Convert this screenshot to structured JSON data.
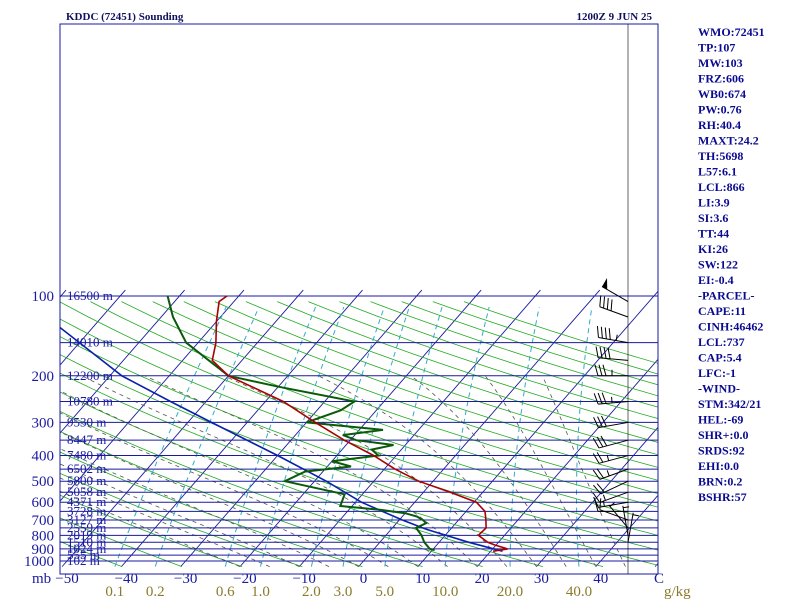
{
  "header": {
    "station": "KDDC (72451) Sounding",
    "time": "1200Z  9 JUN 25"
  },
  "indices": [
    "WMO:72451",
    "TP:107",
    "MW:103",
    "FRZ:606",
    "WB0:674",
    "PW:0.76",
    "RH:40.4",
    "MAXT:24.2",
    "TH:5698",
    "L57:6.1",
    "LCL:866",
    "LI:3.9",
    "SI:3.6",
    "TT:44",
    "KI:26",
    "SW:122",
    "EI:-0.4",
    "-PARCEL-",
    "CAPE:11",
    "CINH:46462",
    "LCL:737",
    "CAP:5.4",
    "LFC:-1",
    "-WIND-",
    "STM:342/21",
    "HEL:-69",
    "SHR+:0.0",
    "SRDS:92",
    "EHI:0.0",
    "BRN:0.2",
    "BSHR:57"
  ],
  "colors": {
    "isobar": "#1a1aa0",
    "isotherm": "#1a1aa0",
    "dry_adiabat": "#22aa22",
    "mixing_ratio": "#33aacc",
    "moist_adiabat": "#555555",
    "temperature": "#aa0000",
    "dewpoint": "#0a5a0a",
    "parcel": "#0a22aa",
    "wind": "#000000"
  },
  "chart_data": {
    "type": "skew-t log-p",
    "pressure_axis": {
      "unit": "mb",
      "ticks": [
        100,
        200,
        300,
        400,
        500,
        600,
        700,
        800,
        900,
        1000
      ],
      "range": [
        1050,
        100
      ],
      "scale": "log"
    },
    "temperature_axis": {
      "unit": "C",
      "ticks": [
        -50,
        -40,
        -30,
        -20,
        -10,
        0,
        10,
        20,
        30,
        40
      ],
      "labels": [
        "−50",
        "−40",
        "−30",
        "−20",
        "−10",
        "0",
        "10",
        "20",
        "30",
        "40"
      ]
    },
    "mixing_ratio_axis": {
      "unit": "g/kg",
      "ticks": [
        0.1,
        0.2,
        0.6,
        1.0,
        2.0,
        3.0,
        5.0,
        10.0,
        20.0,
        40.0
      ],
      "labels": [
        "0.1",
        "0.2",
        "0.6",
        "1.0",
        "2.0",
        "3.0",
        "5.0",
        "10.0",
        "20.0",
        "40.0"
      ]
    },
    "height_labels": [
      {
        "p": 100,
        "label": "16500 m"
      },
      {
        "p": 150,
        "label": "14010 m"
      },
      {
        "p": 200,
        "label": "12200 m"
      },
      {
        "p": 250,
        "label": "10780 m"
      },
      {
        "p": 300,
        "label": "9530 m"
      },
      {
        "p": 350,
        "label": "8447 m"
      },
      {
        "p": 400,
        "label": "7480 m"
      },
      {
        "p": 450,
        "label": "6502 m"
      },
      {
        "p": 500,
        "label": "5800 m"
      },
      {
        "p": 550,
        "label": "5058 m"
      },
      {
        "p": 600,
        "label": "4371 m"
      },
      {
        "p": 650,
        "label": "3728 m"
      },
      {
        "p": 700,
        "label": "3127 m"
      },
      {
        "p": 750,
        "label": "2559 m"
      },
      {
        "p": 800,
        "label": "2019 m"
      },
      {
        "p": 850,
        "label": "1510 m"
      },
      {
        "p": 900,
        "label": "1024 m"
      },
      {
        "p": 950,
        "label": "555 m"
      },
      {
        "p": 1000,
        "label": "102 m"
      }
    ],
    "temperature_profile": [
      [
        918,
        20.4
      ],
      [
        900,
        22.5
      ],
      [
        870,
        19.8
      ],
      [
        850,
        18.2
      ],
      [
        800,
        15.6
      ],
      [
        750,
        15.8
      ],
      [
        700,
        14.6
      ],
      [
        650,
        13.2
      ],
      [
        600,
        10.4
      ],
      [
        550,
        4.5
      ],
      [
        500,
        -2.4
      ],
      [
        450,
        -8.2
      ],
      [
        400,
        -13.8
      ],
      [
        350,
        -21.0
      ],
      [
        300,
        -28.5
      ],
      [
        250,
        -37.0
      ],
      [
        200,
        -50.0
      ],
      [
        175,
        -55.0
      ],
      [
        150,
        -57.0
      ],
      [
        125,
        -60.0
      ],
      [
        105,
        -62.5
      ],
      [
        100,
        -62.0
      ]
    ],
    "dewpoint_profile": [
      [
        910,
        10.4
      ],
      [
        900,
        9.4
      ],
      [
        850,
        7.5
      ],
      [
        800,
        6.0
      ],
      [
        750,
        4.0
      ],
      [
        720,
        5.0
      ],
      [
        700,
        4.0
      ],
      [
        680,
        2.5
      ],
      [
        660,
        0.0
      ],
      [
        640,
        -5.0
      ],
      [
        620,
        -12.0
      ],
      [
        560,
        -13.0
      ],
      [
        500,
        -25.0
      ],
      [
        460,
        -23.0
      ],
      [
        440,
        -16.0
      ],
      [
        420,
        -20.0
      ],
      [
        400,
        -13.0
      ],
      [
        380,
        -15.0
      ],
      [
        365,
        -12.0
      ],
      [
        350,
        -19.0
      ],
      [
        335,
        -22.0
      ],
      [
        320,
        -16.0
      ],
      [
        300,
        -30.0
      ],
      [
        270,
        -26.0
      ],
      [
        250,
        -25.0
      ],
      [
        220,
        -40.0
      ],
      [
        200,
        -50.0
      ],
      [
        150,
        -62.0
      ],
      [
        120,
        -68.0
      ],
      [
        100,
        -72.0
      ]
    ],
    "parcel_profile": [
      [
        918,
        22.0
      ],
      [
        850,
        15.0
      ],
      [
        760,
        6.0
      ],
      [
        700,
        0.5
      ],
      [
        600,
        -9.0
      ],
      [
        500,
        -18.0
      ],
      [
        400,
        -30.0
      ],
      [
        300,
        -46.0
      ],
      [
        250,
        -56.0
      ],
      [
        200,
        -68.0
      ],
      [
        150,
        -80.0
      ],
      [
        130,
        -86.0
      ]
    ],
    "wind_barbs": [
      {
        "p": 105,
        "dir": 300,
        "spd": 50
      },
      {
        "p": 120,
        "dir": 290,
        "spd": 40
      },
      {
        "p": 150,
        "dir": 280,
        "spd": 45
      },
      {
        "p": 175,
        "dir": 275,
        "spd": 40
      },
      {
        "p": 200,
        "dir": 270,
        "spd": 35
      },
      {
        "p": 250,
        "dir": 265,
        "spd": 35
      },
      {
        "p": 300,
        "dir": 260,
        "spd": 30
      },
      {
        "p": 350,
        "dir": 255,
        "spd": 30
      },
      {
        "p": 400,
        "dir": 255,
        "spd": 25
      },
      {
        "p": 450,
        "dir": 250,
        "spd": 25
      },
      {
        "p": 500,
        "dir": 245,
        "spd": 20
      },
      {
        "p": 550,
        "dir": 250,
        "spd": 15
      },
      {
        "p": 600,
        "dir": 260,
        "spd": 15
      },
      {
        "p": 650,
        "dir": 270,
        "spd": 10
      },
      {
        "p": 700,
        "dir": 290,
        "spd": 10
      },
      {
        "p": 750,
        "dir": 320,
        "spd": 5
      },
      {
        "p": 800,
        "dir": 350,
        "spd": 5
      },
      {
        "p": 850,
        "dir": 10,
        "spd": 5
      }
    ]
  }
}
